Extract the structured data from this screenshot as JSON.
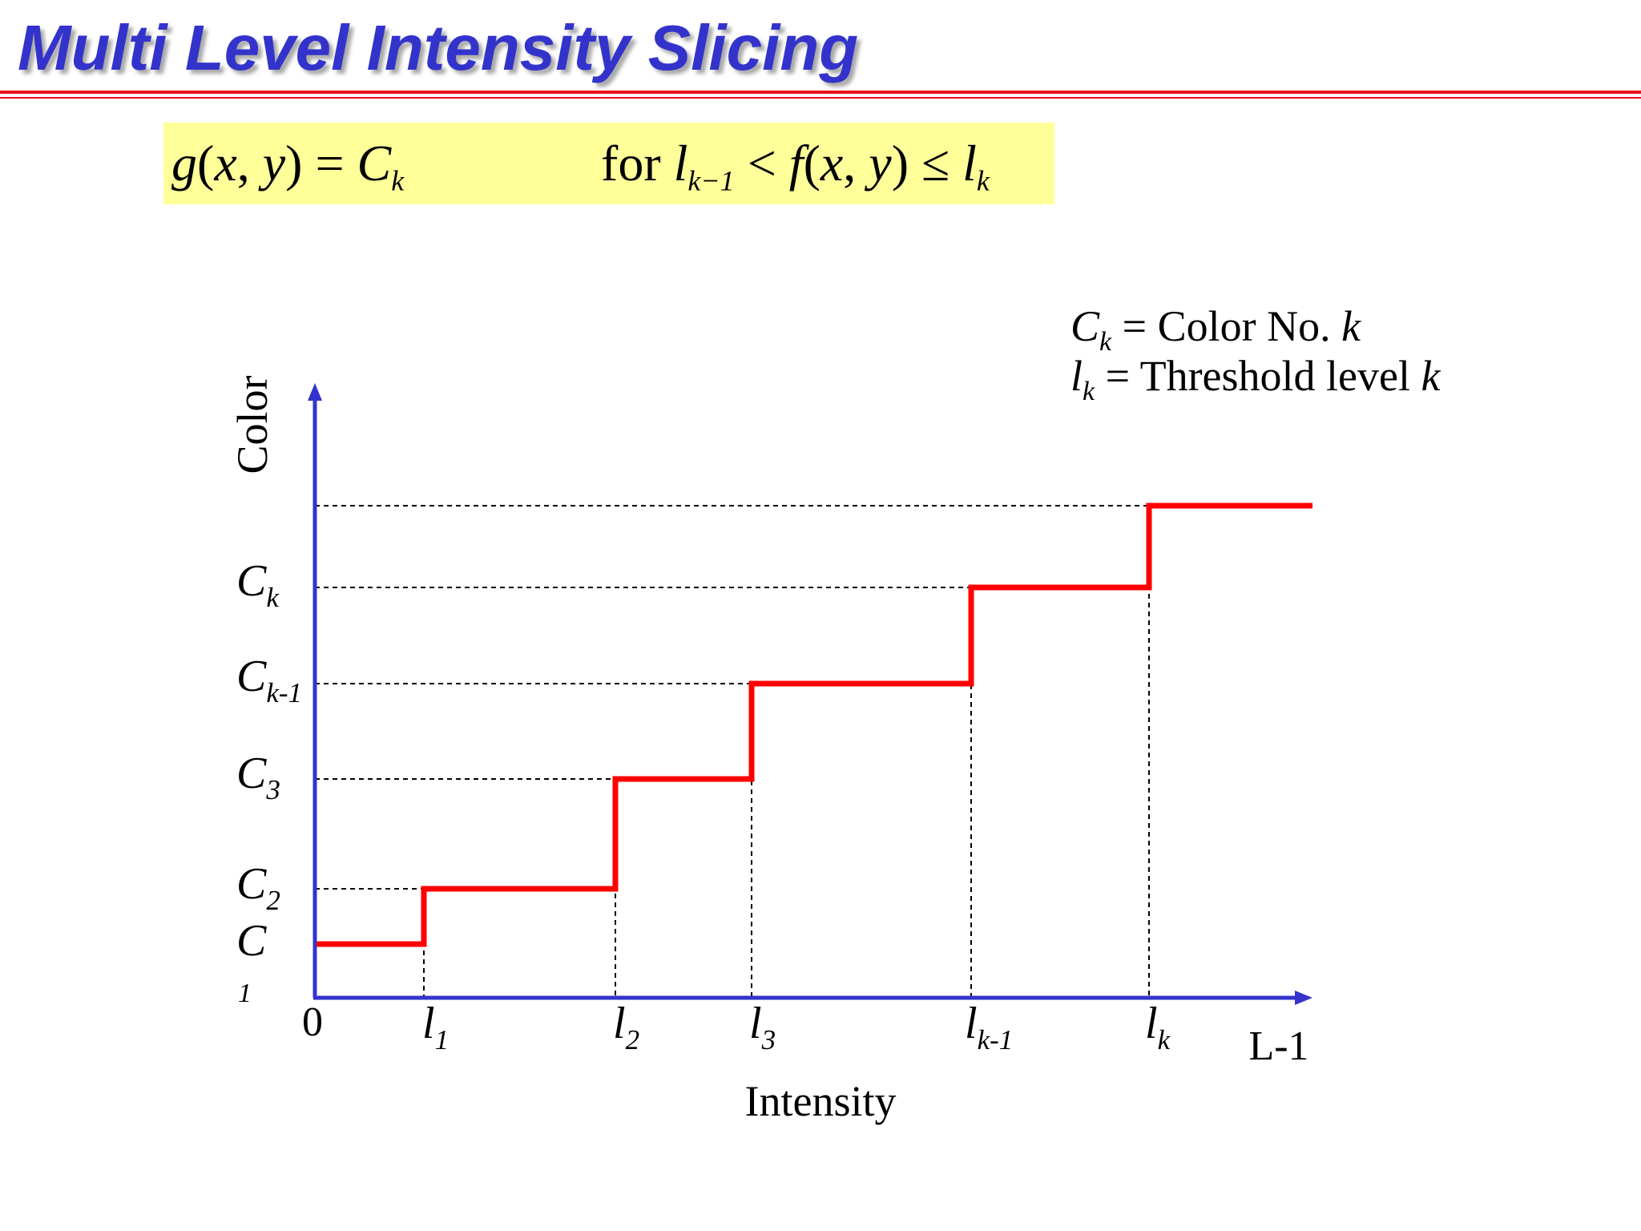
{
  "title": "Multi Level Intensity Slicing",
  "formula": {
    "lhs": "g(x, y) = C_k",
    "rhs": "for l_{k−1} < f(x, y) ≤ l_k"
  },
  "legend": {
    "line1": "C_k = Color No. k",
    "line2": "l_k = Threshold level k"
  },
  "axes": {
    "x_label": "Intensity",
    "y_label": "Color",
    "origin_label": "0",
    "x_max_label": "L-1"
  },
  "x_ticks": [
    {
      "base": "l",
      "sub": "1"
    },
    {
      "base": "l",
      "sub": "2"
    },
    {
      "base": "l",
      "sub": "3"
    },
    {
      "base": "l",
      "sub": "k-1"
    },
    {
      "base": "l",
      "sub": "k"
    }
  ],
  "y_ticks": [
    {
      "base": "C",
      "sub": "1"
    },
    {
      "base": "C",
      "sub": "2"
    },
    {
      "base": "C",
      "sub": "3"
    },
    {
      "base": "C",
      "sub": "k-1"
    },
    {
      "base": "C",
      "sub": "k"
    }
  ],
  "colors": {
    "axis": "#3333cc",
    "staircase": "#ff0000",
    "guides": "#000000",
    "title": "#3333cc",
    "formula_bg": "#ffff99",
    "rule": "#e8101a"
  }
}
